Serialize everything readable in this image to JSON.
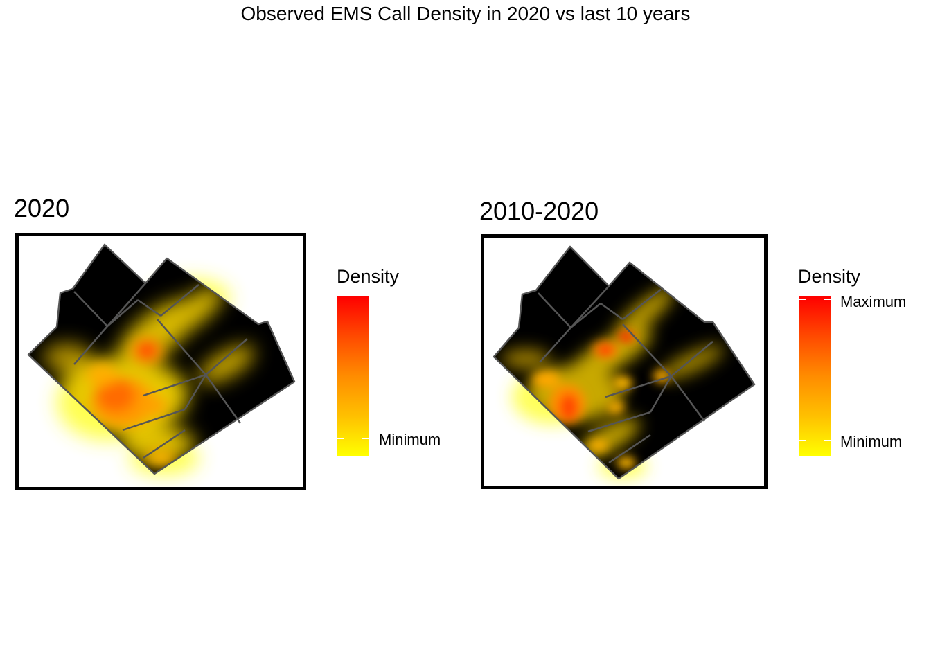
{
  "title": "Observed EMS Call Density in 2020 vs last 10 years",
  "panels": [
    {
      "title": "2020",
      "legend": {
        "title": "Density",
        "max_label": "",
        "min_label": "Minimum"
      }
    },
    {
      "title": "2010-2020",
      "legend": {
        "title": "Density",
        "max_label": "Maximum",
        "min_label": "Minimum"
      }
    }
  ],
  "colors": {
    "density_min": "#ffff00",
    "density_mid": "#ff8c00",
    "density_max": "#ff0000",
    "background_low": "#000000",
    "district_boundary": "#555555"
  }
}
